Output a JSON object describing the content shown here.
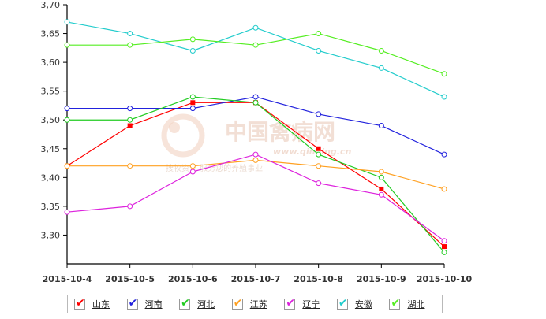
{
  "chart_data": {
    "type": "line",
    "categories": [
      "2015-10-4",
      "2015-10-5",
      "2015-10-6",
      "2015-10-7",
      "2015-10-8",
      "2015-10-9",
      "2015-10-10"
    ],
    "ylim": [
      3.25,
      3.7
    ],
    "yticks": [
      "3,30",
      "3,35",
      "3,40",
      "3,45",
      "3,50",
      "3,55",
      "3,60",
      "3,65",
      "3,70"
    ],
    "ytick_values": [
      3.3,
      3.35,
      3.4,
      3.45,
      3.5,
      3.55,
      3.6,
      3.65,
      3.7
    ],
    "series": [
      {
        "name": "山东",
        "color": "#ff0000",
        "values": [
          3.42,
          3.49,
          3.53,
          3.53,
          3.45,
          3.38,
          3.28
        ]
      },
      {
        "name": "河南",
        "color": "#2222dd",
        "values": [
          3.52,
          3.52,
          3.52,
          3.54,
          3.51,
          3.49,
          3.44
        ]
      },
      {
        "name": "河北",
        "color": "#22cc22",
        "values": [
          3.5,
          3.5,
          3.54,
          3.53,
          3.44,
          3.4,
          3.27
        ]
      },
      {
        "name": "江苏",
        "color": "#ffa021",
        "values": [
          3.42,
          3.42,
          3.42,
          3.43,
          3.42,
          3.41,
          3.38
        ]
      },
      {
        "name": "辽宁",
        "color": "#dd22dd",
        "values": [
          3.34,
          3.35,
          3.41,
          3.44,
          3.39,
          3.37,
          3.29
        ]
      },
      {
        "name": "安徽",
        "color": "#22cccc",
        "values": [
          3.67,
          3.65,
          3.62,
          3.66,
          3.62,
          3.59,
          3.54
        ]
      },
      {
        "name": "湖北",
        "color": "#55ee22",
        "values": [
          3.63,
          3.63,
          3.64,
          3.63,
          3.65,
          3.62,
          3.58
        ]
      }
    ],
    "legend_position": "bottom",
    "grid": false
  },
  "watermark": {
    "text": "中国禽病网",
    "url": "www.qinbing.cn",
    "slogan": "搜牧资讯  服务您的养殖事业"
  }
}
